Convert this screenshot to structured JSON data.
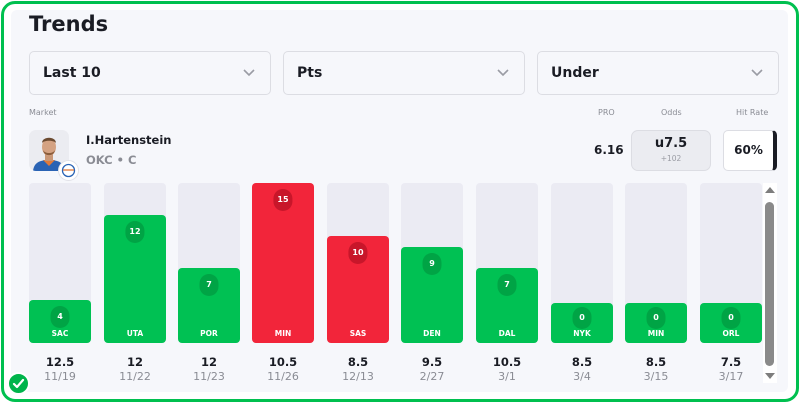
{
  "header": {
    "title": "Trends"
  },
  "filters": [
    {
      "label": "Last 10",
      "icon": "chevron-down-icon"
    },
    {
      "label": "Pts",
      "icon": "chevron-down-icon"
    },
    {
      "label": "Under",
      "icon": "chevron-down-icon"
    }
  ],
  "columns": {
    "market": "Market",
    "pro": "PRO",
    "odds": "Odds",
    "hit_rate": "Hit Rate"
  },
  "player": {
    "name": "I.Hartenstein",
    "meta": "OKC • C",
    "pro": "6.16",
    "odds_line": "u7.5",
    "odds_price": "+102",
    "hit_rate": "60%"
  },
  "colors": {
    "under": "#00c153",
    "over": "#f2253a",
    "accent": "#00c04f",
    "track": "#ebebf3"
  },
  "chart_data": {
    "type": "bar",
    "title": "Trends",
    "ylim": [
      0,
      15
    ],
    "categories": [
      "SAC",
      "UTA",
      "POR",
      "MIN",
      "SAS",
      "DEN",
      "DAL",
      "NYK",
      "MIN",
      "ORL"
    ],
    "values": [
      4,
      12,
      7,
      15,
      10,
      9,
      7,
      0,
      0,
      0
    ],
    "lines": [
      "12.5",
      "12",
      "12",
      "10.5",
      "8.5",
      "9.5",
      "10.5",
      "8.5",
      "8.5",
      "7.5"
    ],
    "dates": [
      "11/19",
      "11/22",
      "11/23",
      "11/26",
      "12/13",
      "2/27",
      "3/1",
      "3/4",
      "3/15",
      "3/17"
    ],
    "results": [
      "under",
      "under",
      "under",
      "over",
      "over",
      "under",
      "under",
      "under",
      "under",
      "under"
    ]
  }
}
